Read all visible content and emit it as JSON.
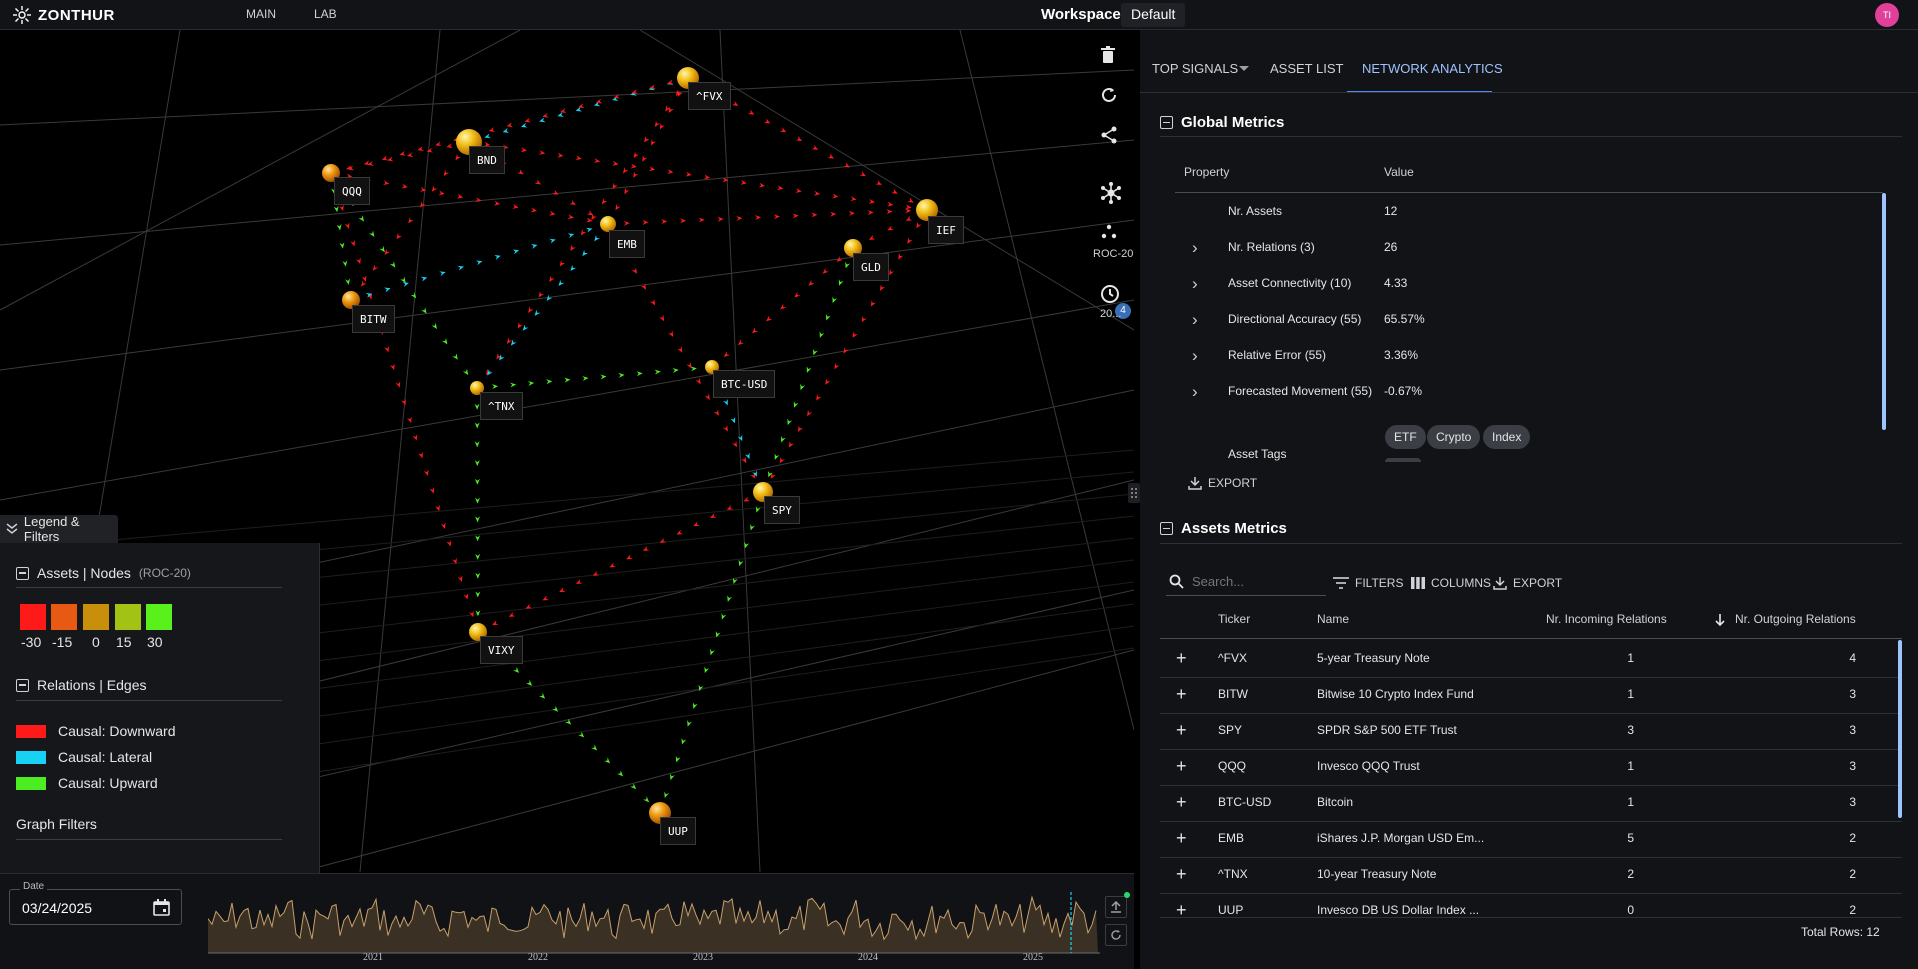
{
  "header": {
    "logo_text": "ZONTHUR",
    "nav": [
      "MAIN",
      "LAB"
    ],
    "workspace_label": "Workspace:",
    "workspace_value": "Default",
    "avatar_initials": "TI"
  },
  "graph": {
    "nodes": [
      {
        "ticker": "^FVX"
      },
      {
        "ticker": "BND"
      },
      {
        "ticker": "QQQ"
      },
      {
        "ticker": "EMB"
      },
      {
        "ticker": "IEF"
      },
      {
        "ticker": "GLD"
      },
      {
        "ticker": "BITW"
      },
      {
        "ticker": "^TNX"
      },
      {
        "ticker": "BTC-USD"
      },
      {
        "ticker": "SPY"
      },
      {
        "ticker": "VIXY"
      },
      {
        "ticker": "UUP"
      }
    ],
    "toolbar": {
      "roc_caption": "ROC-20",
      "time_caption": "20...",
      "time_badge": "4"
    }
  },
  "legend": {
    "tab_label": "Legend & Filters",
    "nodes_title": "Assets | Nodes",
    "nodes_sub": "(ROC-20)",
    "scale": [
      {
        "label": "-30",
        "color": "#ff1a1a"
      },
      {
        "label": "-15",
        "color": "#e85a14"
      },
      {
        "label": "0",
        "color": "#c8900a"
      },
      {
        "label": "15",
        "color": "#a3c314"
      },
      {
        "label": "30",
        "color": "#5af01c"
      }
    ],
    "edges_title": "Relations | Edges",
    "edges": [
      {
        "label": "Causal: Downward",
        "color": "#ff1a1a"
      },
      {
        "label": "Causal: Lateral",
        "color": "#18d2f5"
      },
      {
        "label": "Causal: Upward",
        "color": "#4cee22"
      }
    ],
    "filters_title": "Graph Filters"
  },
  "timeline": {
    "date_label": "Date",
    "date_value": "03/24/2025",
    "years": [
      "2021",
      "2022",
      "2023",
      "2024",
      "2025"
    ]
  },
  "tabs": [
    "TOP SIGNALS",
    "ASSET LIST",
    "NETWORK ANALYTICS"
  ],
  "global_metrics": {
    "title": "Global Metrics",
    "col_property": "Property",
    "col_value": "Value",
    "rows": [
      {
        "property": "Nr. Assets",
        "value": "12"
      },
      {
        "property": "Nr. Relations (3)",
        "value": "26"
      },
      {
        "property": "Asset Connectivity (10)",
        "value": "4.33"
      },
      {
        "property": "Directional Accuracy (55)",
        "value": "65.57%"
      },
      {
        "property": "Relative Error (55)",
        "value": "3.36%"
      },
      {
        "property": "Forecasted Movement (55)",
        "value": "-0.67%"
      }
    ],
    "tags_label": "Asset Tags",
    "tags": [
      "ETF",
      "Crypto",
      "Index"
    ],
    "export_label": "EXPORT"
  },
  "assets_metrics": {
    "title": "Assets Metrics",
    "search_placeholder": "Search...",
    "filters_label": "FILTERS",
    "columns_label": "COLUMNS",
    "export_label": "EXPORT",
    "headers": [
      "Ticker",
      "Name",
      "Nr. Incoming Relations",
      "Nr. Outgoing Relations"
    ],
    "rows": [
      {
        "ticker": "^FVX",
        "name": "5-year Treasury Note",
        "incoming": "1",
        "outgoing": "4"
      },
      {
        "ticker": "BITW",
        "name": "Bitwise 10 Crypto Index Fund",
        "incoming": "1",
        "outgoing": "3"
      },
      {
        "ticker": "SPY",
        "name": "SPDR S&P 500 ETF Trust",
        "incoming": "3",
        "outgoing": "3"
      },
      {
        "ticker": "QQQ",
        "name": "Invesco QQQ Trust",
        "incoming": "1",
        "outgoing": "3"
      },
      {
        "ticker": "BTC-USD",
        "name": "Bitcoin",
        "incoming": "1",
        "outgoing": "3"
      },
      {
        "ticker": "EMB",
        "name": "iShares J.P. Morgan USD Em...",
        "incoming": "5",
        "outgoing": "2"
      },
      {
        "ticker": "^TNX",
        "name": "10-year Treasury Note",
        "incoming": "2",
        "outgoing": "2"
      },
      {
        "ticker": "UUP",
        "name": "Invesco DB US Dollar Index ...",
        "incoming": "0",
        "outgoing": "2"
      }
    ],
    "total_rows": "Total Rows: 12"
  }
}
